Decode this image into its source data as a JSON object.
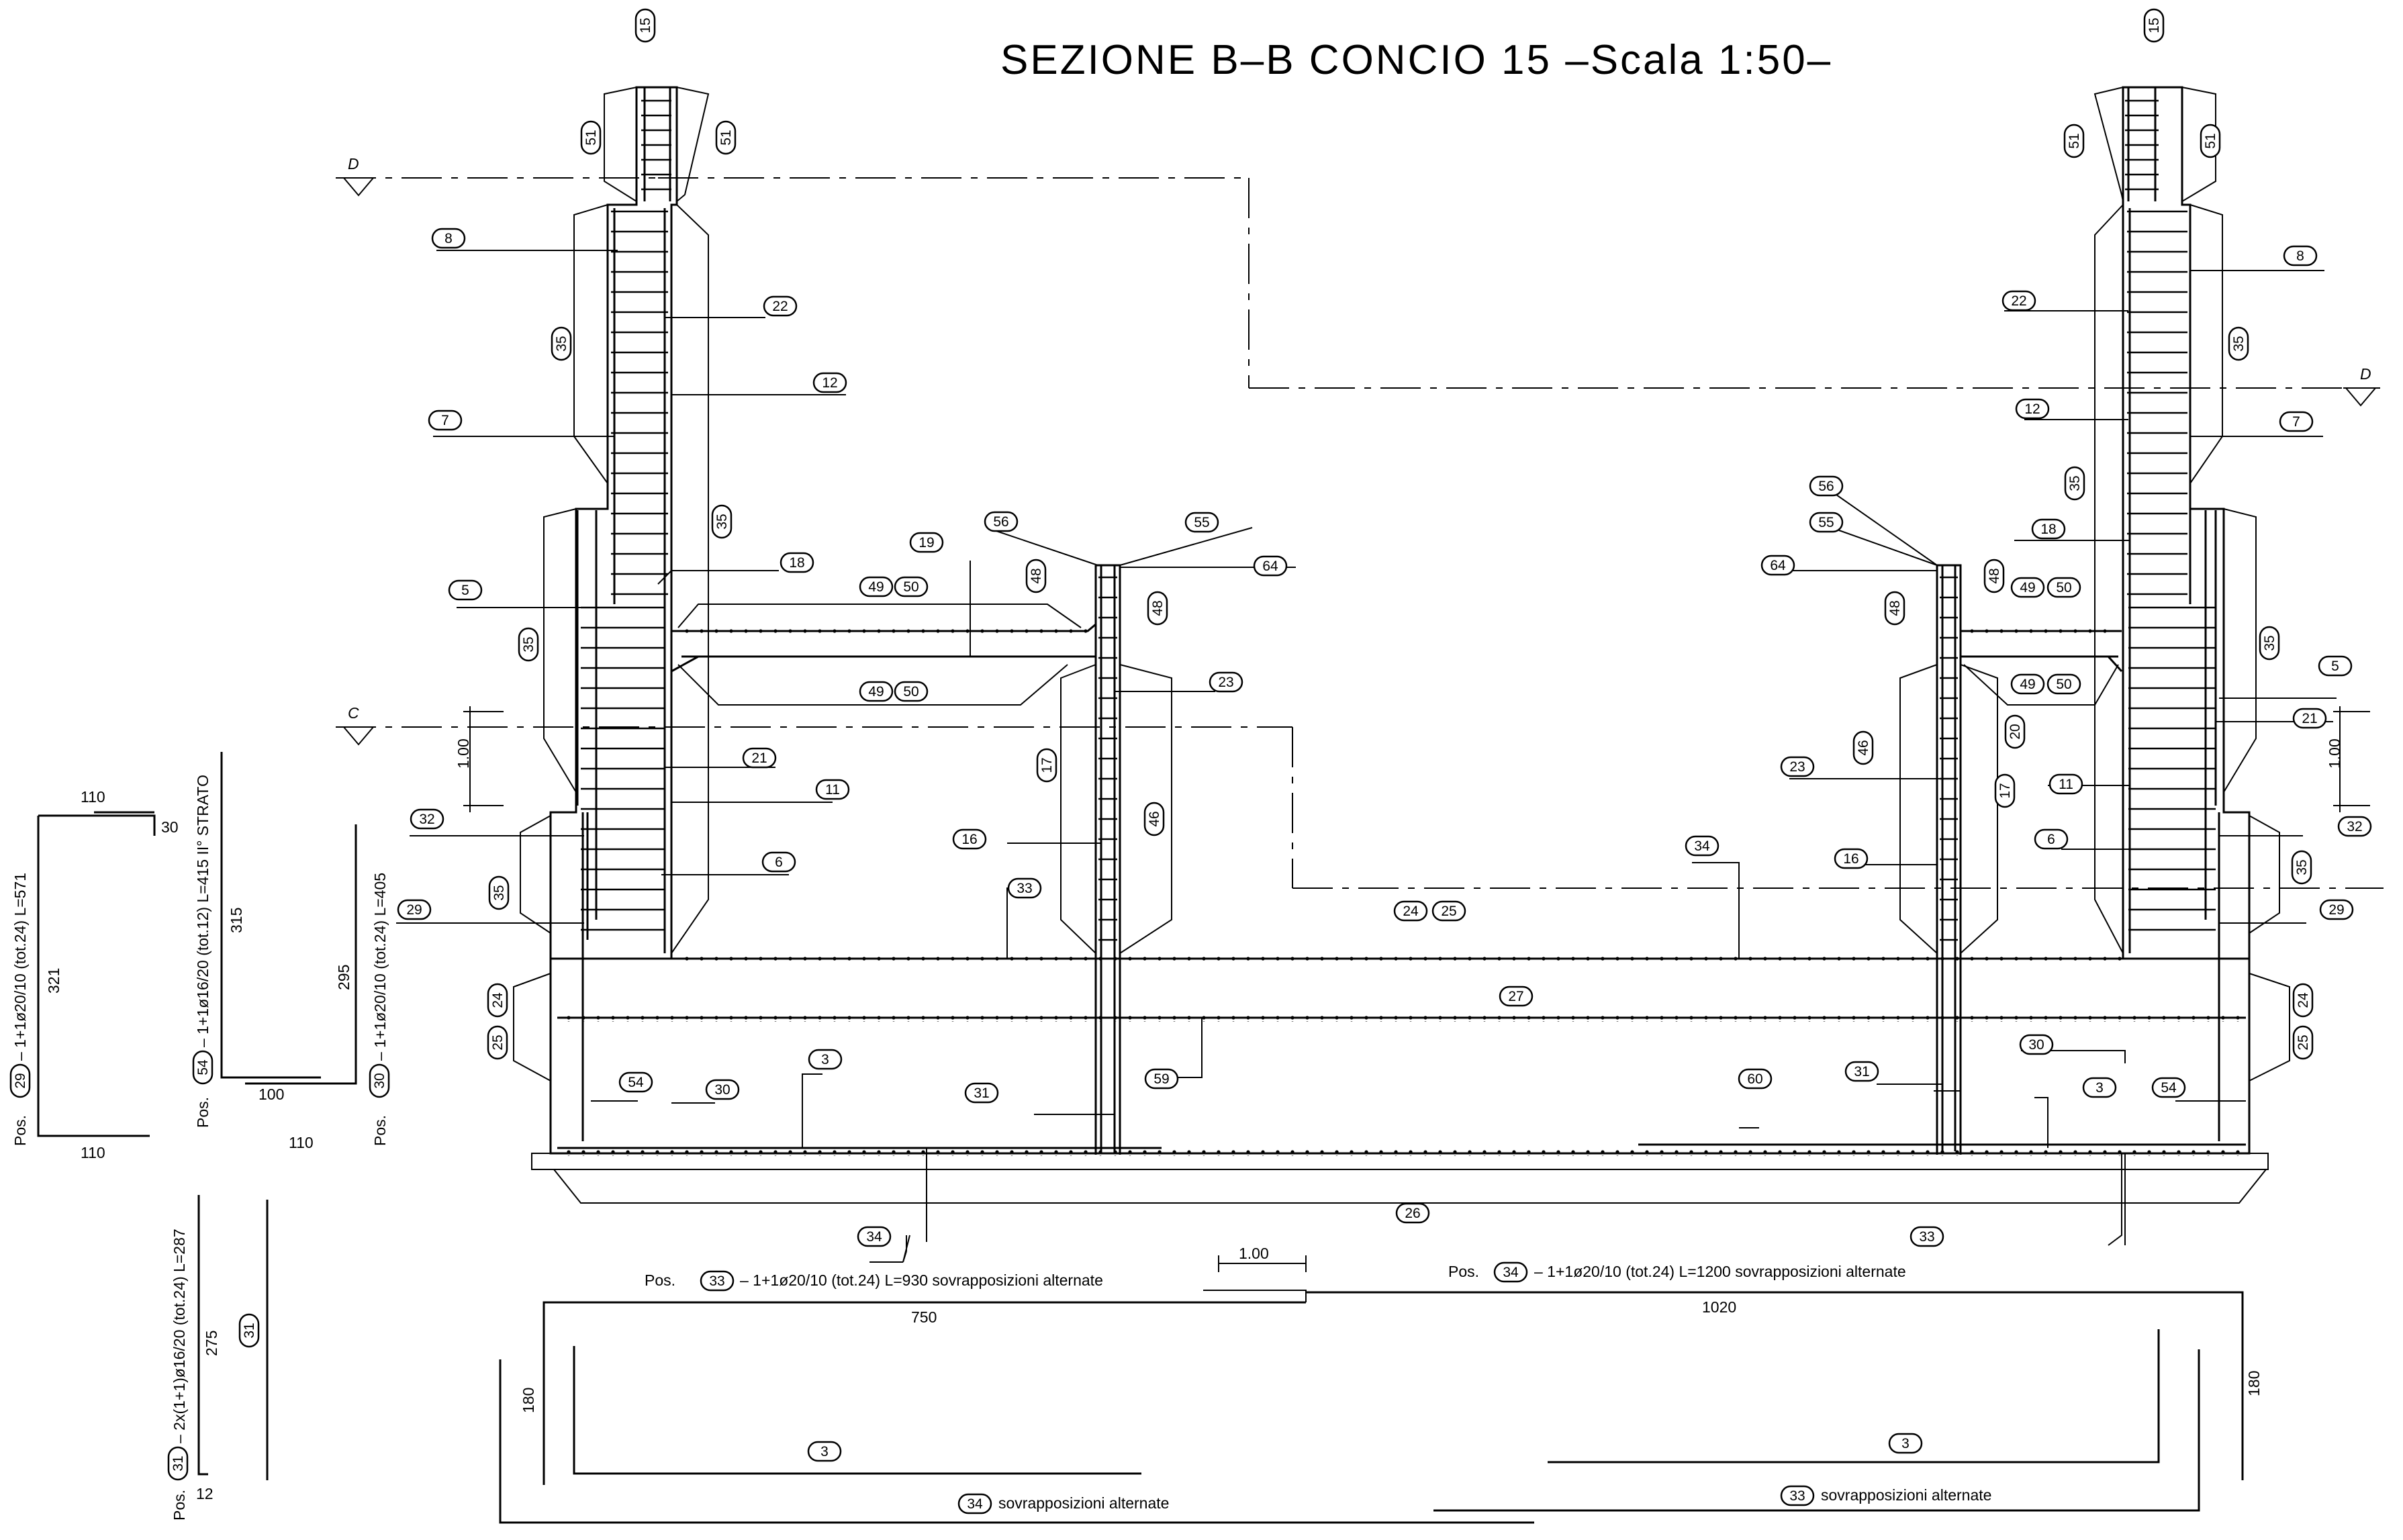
{
  "title": "SEZIONE B–B CONCIO 15  –Scala 1:50–",
  "section_marks": {
    "d": "D",
    "c": "C"
  },
  "dim_100": "1.00",
  "tags": {
    "t3": "3",
    "t5": "5",
    "t6": "6",
    "t7": "7",
    "t8": "8",
    "t11": "11",
    "t12": "12",
    "t15": "15",
    "t16": "16",
    "t17": "17",
    "t18": "18",
    "t19": "19",
    "t20": "20",
    "t21": "21",
    "t22": "22",
    "t23": "23",
    "t24": "24",
    "t25": "25",
    "t26": "26",
    "t27": "27",
    "t29": "29",
    "t30": "30",
    "t31": "31",
    "t32": "32",
    "t33": "33",
    "t34": "34",
    "t35": "35",
    "t46": "46",
    "t48": "48",
    "t49": "49",
    "t50": "50",
    "t51": "51",
    "t54": "54",
    "t55": "55",
    "t56": "56",
    "t59": "59",
    "t60": "60",
    "t64": "64"
  },
  "schedules": {
    "pos29": {
      "pos": "Pos.",
      "n": "29",
      "desc": "– 1+1ø20/10 (tot.24)  L=571",
      "top": "110",
      "right": "30",
      "side": "321",
      "bottom": "110"
    },
    "pos54": {
      "pos": "Pos.",
      "n": "54",
      "desc": "– 1+1ø16/20 (tot.12)  L=415 II° STRATO",
      "side": "315",
      "bottom": "100"
    },
    "pos30": {
      "pos": "Pos.",
      "n": "30",
      "desc": "– 1+1ø20/10 (tot.24)  L=405",
      "side": "295",
      "bottom": "110"
    },
    "pos31": {
      "pos": "Pos.",
      "n": "31",
      "desc": "– 2x(1+1)ø16/20 (tot.24)  L=287",
      "side": "275",
      "bottom": "12"
    },
    "pos33": {
      "pos": "Pos.",
      "n": "33",
      "desc": "– 1+1ø20/10 (tot.24)  L=930 sovrapposizioni alternate",
      "len": "750",
      "side": "180"
    },
    "pos34": {
      "pos": "Pos.",
      "n": "34",
      "desc": "– 1+1ø20/10 (tot.24)  L=1200 sovrapposizioni alternate",
      "len": "1020",
      "side": "180"
    },
    "overlap_note": "sovrapposizioni  alternate"
  }
}
